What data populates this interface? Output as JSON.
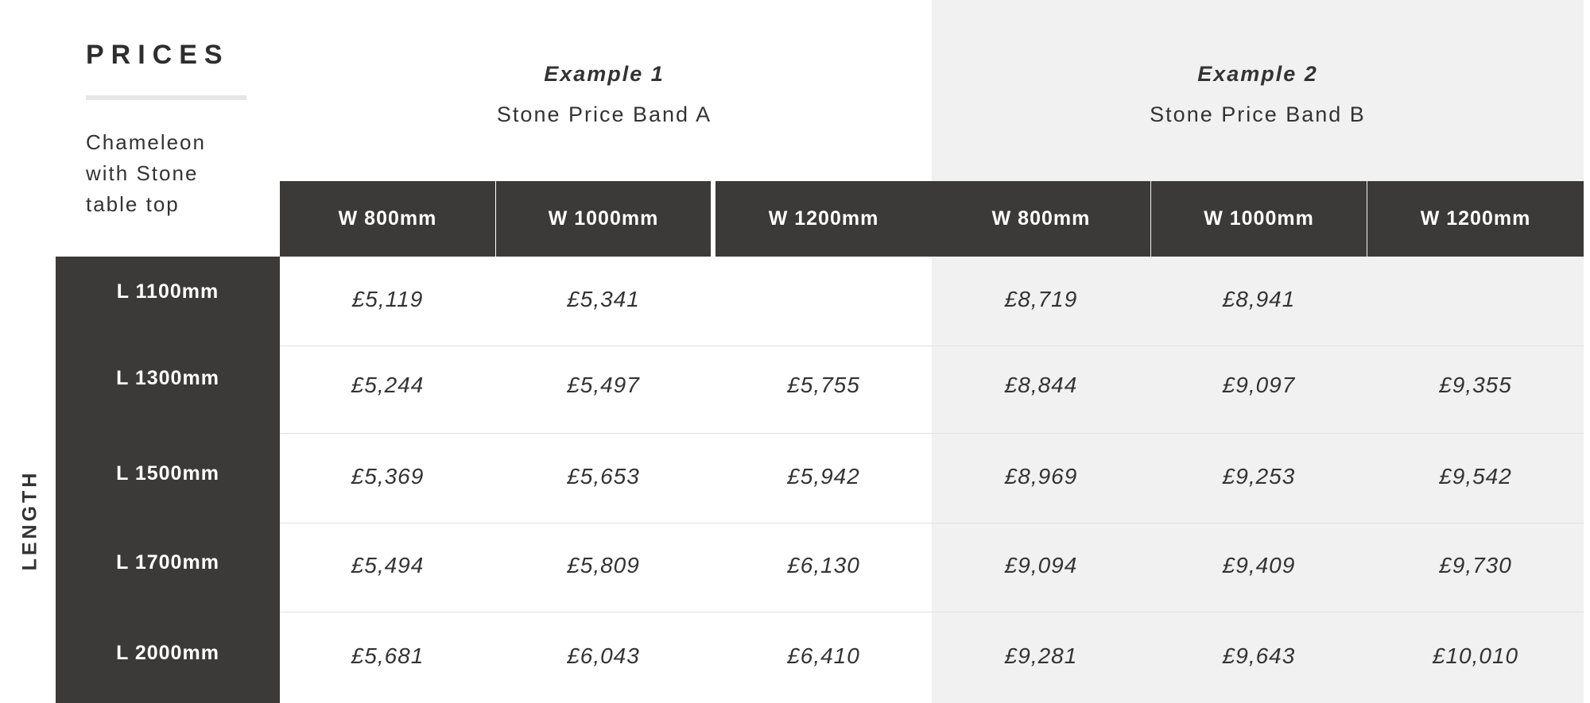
{
  "title": "PRICES",
  "description": "Chameleon with Stone table top",
  "axis_label": "LENGTH",
  "groups": [
    {
      "heading": "Example 1",
      "band": "Stone Price Band A"
    },
    {
      "heading": "Example 2",
      "band": "Stone Price Band B"
    }
  ],
  "columns": [
    "W 800mm",
    "W 1000mm",
    "W 1200mm",
    "W 800mm",
    "W 1000mm",
    "W 1200mm"
  ],
  "rows": [
    {
      "label": "L 1100mm",
      "values": [
        "£5,119",
        "£5,341",
        "",
        "£8,719",
        "£8,941",
        ""
      ]
    },
    {
      "label": "L 1300mm",
      "values": [
        "£5,244",
        "£5,497",
        "£5,755",
        "£8,844",
        "£9,097",
        "£9,355"
      ]
    },
    {
      "label": "L 1500mm",
      "values": [
        "£5,369",
        "£5,653",
        "£5,942",
        "£8,969",
        "£9,253",
        "£9,542"
      ]
    },
    {
      "label": "L 1700mm",
      "values": [
        "£5,494",
        "£5,809",
        "£6,130",
        "£9,094",
        "£9,409",
        "£9,730"
      ]
    },
    {
      "label": "L 2000mm",
      "values": [
        "£5,681",
        "£6,043",
        "£6,410",
        "£9,281",
        "£9,643",
        "£10,010"
      ]
    }
  ],
  "colors": {
    "dark": "#3b3a39",
    "band_b_bg": "#f1f1f1"
  }
}
